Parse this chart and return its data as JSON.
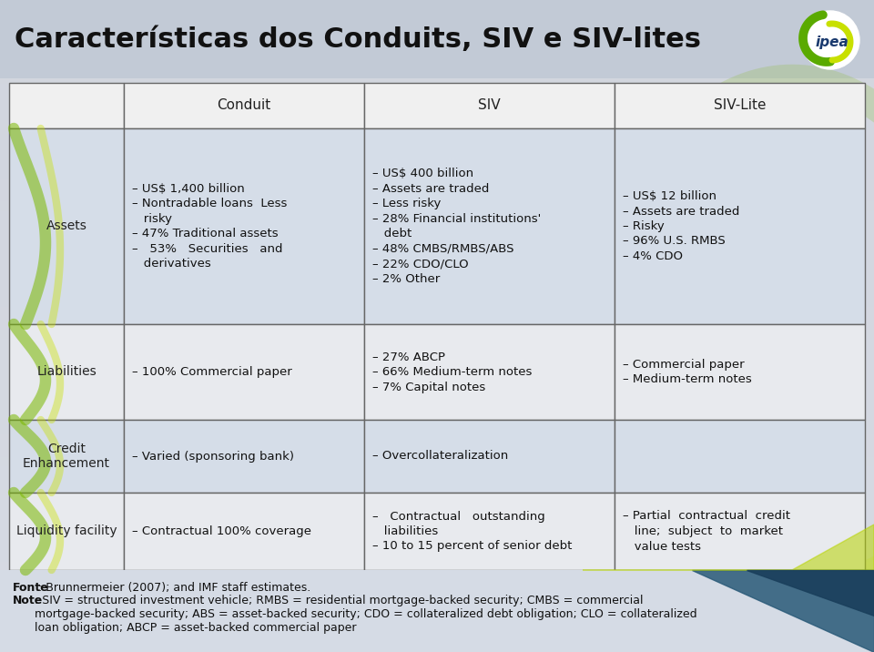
{
  "title": "Características dos Conduits, SIV e SIV-lites",
  "header_row": [
    "",
    "Conduit",
    "SIV",
    "SIV-Lite"
  ],
  "cell_data": [
    [
      "Assets",
      "– US$ 1,400 billion\n– Nontradable loans  Less\n   risky\n– 47% Traditional assets\n–   53%   Securities   and\n   derivatives",
      "– US$ 400 billion\n– Assets are traded\n– Less risky\n– 28% Financial institutions'\n   debt\n– 48% CMBS/RMBS/ABS\n– 22% CDO/CLO\n– 2% Other",
      "– US$ 12 billion\n– Assets are traded\n– Risky\n– 96% U.S. RMBS\n– 4% CDO"
    ],
    [
      "Liabilities",
      "– 100% Commercial paper",
      "– 27% ABCP\n– 66% Medium-term notes\n– 7% Capital notes",
      "– Commercial paper\n– Medium-term notes"
    ],
    [
      "Credit\nEnhancement",
      "– Varied (sponsoring bank)",
      "– Overcollateralization",
      ""
    ],
    [
      "Liquidity facility",
      "– Contractual 100% coverage",
      "–   Contractual   outstanding\n   liabilities\n– 10 to 15 percent of senior debt",
      "– Partial  contractual  credit\n   line;  subject  to  market\n   value tests"
    ]
  ],
  "col_bounds": [
    10,
    136,
    400,
    675,
    950
  ],
  "row_tops": [
    625,
    575,
    360,
    255,
    175
  ],
  "row_bottoms": [
    575,
    360,
    255,
    175,
    90
  ],
  "header_bg": "#f0f0f0",
  "row_bgs": [
    "#d5dde8",
    "#e8eaee",
    "#d5dde8",
    "#e8eaee"
  ],
  "border_color": "#666666",
  "title_bg": "#c5cdd8",
  "page_bg_top": "#d4dae4",
  "page_bg_bottom": "#cdd4de",
  "footer_bg": "#d8dfe8",
  "footer_fonte_bold": "Fonte",
  "footer_fonte_rest": ": Brunnermeier (2007); and IMF staff estimates.",
  "footer_note_bold": "Note",
  "footer_note_rest": ": SIV = structured investment vehicle; RMBS = residential mortgage-backed security; CMBS = commercial\nmortgage-backed security; ABS = asset-backed security; CDO = collateralized debt obligation; CLO = collateralized\nloan obligation; ABCP = asset-backed commercial paper",
  "table_font": 9.5,
  "label_font": 10,
  "header_font": 11,
  "title_font": 22
}
